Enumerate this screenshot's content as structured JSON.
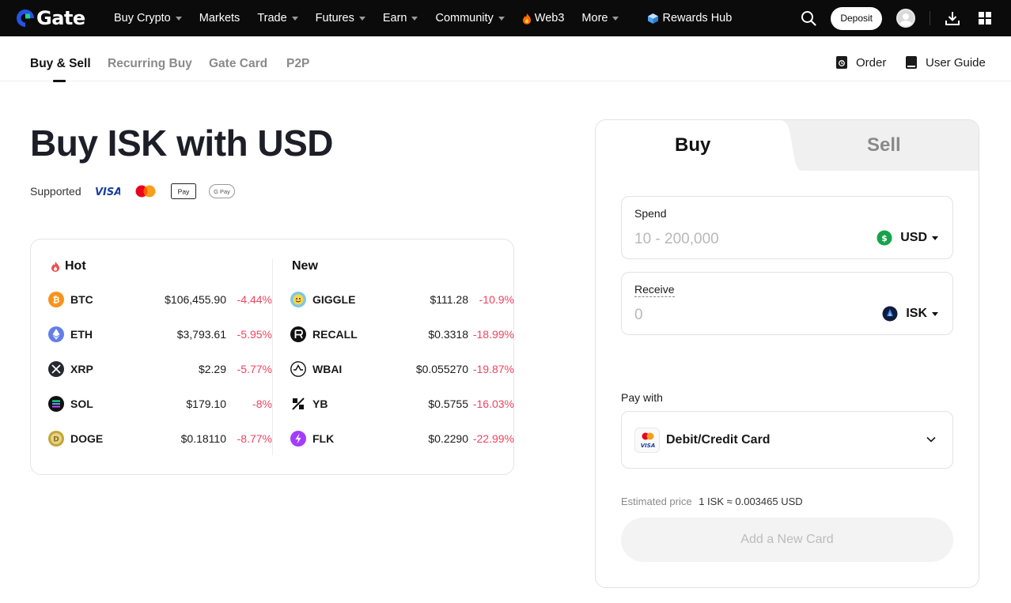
{
  "brand": {
    "name": "Gate"
  },
  "topnav": {
    "items": [
      {
        "label": "Buy Crypto",
        "has_caret": true
      },
      {
        "label": "Markets",
        "has_caret": false
      },
      {
        "label": "Trade",
        "has_caret": true
      },
      {
        "label": "Futures",
        "has_caret": true
      },
      {
        "label": "Earn",
        "has_caret": true
      },
      {
        "label": "Community",
        "has_caret": true
      },
      {
        "label": "Web3",
        "has_caret": false,
        "icon": "fire-icon"
      },
      {
        "label": "More",
        "has_caret": true
      },
      {
        "label": "Rewards Hub",
        "has_caret": false,
        "icon": "gift-box-icon"
      }
    ],
    "deposit_label": "Deposit"
  },
  "subnav": {
    "tabs": [
      {
        "label": "Buy & Sell",
        "active": true
      },
      {
        "label": "Recurring Buy",
        "active": false
      },
      {
        "label": "Gate Card",
        "active": false
      },
      {
        "label": "P2P",
        "active": false
      }
    ],
    "order_label": "Order",
    "guide_label": "User Guide"
  },
  "hero": {
    "title": "Buy ISK with USD",
    "supported_label": "Supported",
    "payment_methods": [
      "VISA",
      "Mastercard",
      "Apple Pay",
      "Google Pay"
    ]
  },
  "market": {
    "hot_title": "Hot",
    "new_title": "New",
    "hot": [
      {
        "symbol": "BTC",
        "price": "$106,455.90",
        "change": "-4.44%",
        "color": "#f7931a"
      },
      {
        "symbol": "ETH",
        "price": "$3,793.61",
        "change": "-5.95%",
        "color": "#627eea"
      },
      {
        "symbol": "XRP",
        "price": "$2.29",
        "change": "-5.77%",
        "color": "#23292f"
      },
      {
        "symbol": "SOL",
        "price": "$179.10",
        "change": "-8%",
        "color": "#111111"
      },
      {
        "symbol": "DOGE",
        "price": "$0.18110",
        "change": "-8.77%",
        "color": "#c2a633"
      }
    ],
    "new": [
      {
        "symbol": "GIGGLE",
        "price": "$111.28",
        "change": "-10.9%",
        "color": "#7ec8e3"
      },
      {
        "symbol": "RECALL",
        "price": "$0.3318",
        "change": "-18.99%",
        "color": "#111111"
      },
      {
        "symbol": "WBAI",
        "price": "$0.055270",
        "change": "-19.87%",
        "color": "#ffffff"
      },
      {
        "symbol": "YB",
        "price": "$0.5755",
        "change": "-16.03%",
        "color": "#ffffff"
      },
      {
        "symbol": "FLK",
        "price": "$0.2290",
        "change": "-22.99%",
        "color": "#a33cff"
      }
    ],
    "negative_color": "#f0445f"
  },
  "trade": {
    "buy_tab": "Buy",
    "sell_tab": "Sell",
    "spend": {
      "label": "Spend",
      "placeholder": "10 - 200,000",
      "currency": "USD"
    },
    "receive": {
      "label": "Receive",
      "value": "0",
      "currency": "ISK"
    },
    "pay_with_label": "Pay with",
    "pay_method": "Debit/Credit Card",
    "estimated_label": "Estimated price",
    "estimated_value": "1 ISK ≈ 0.003465 USD",
    "add_card_label": "Add a New Card"
  }
}
